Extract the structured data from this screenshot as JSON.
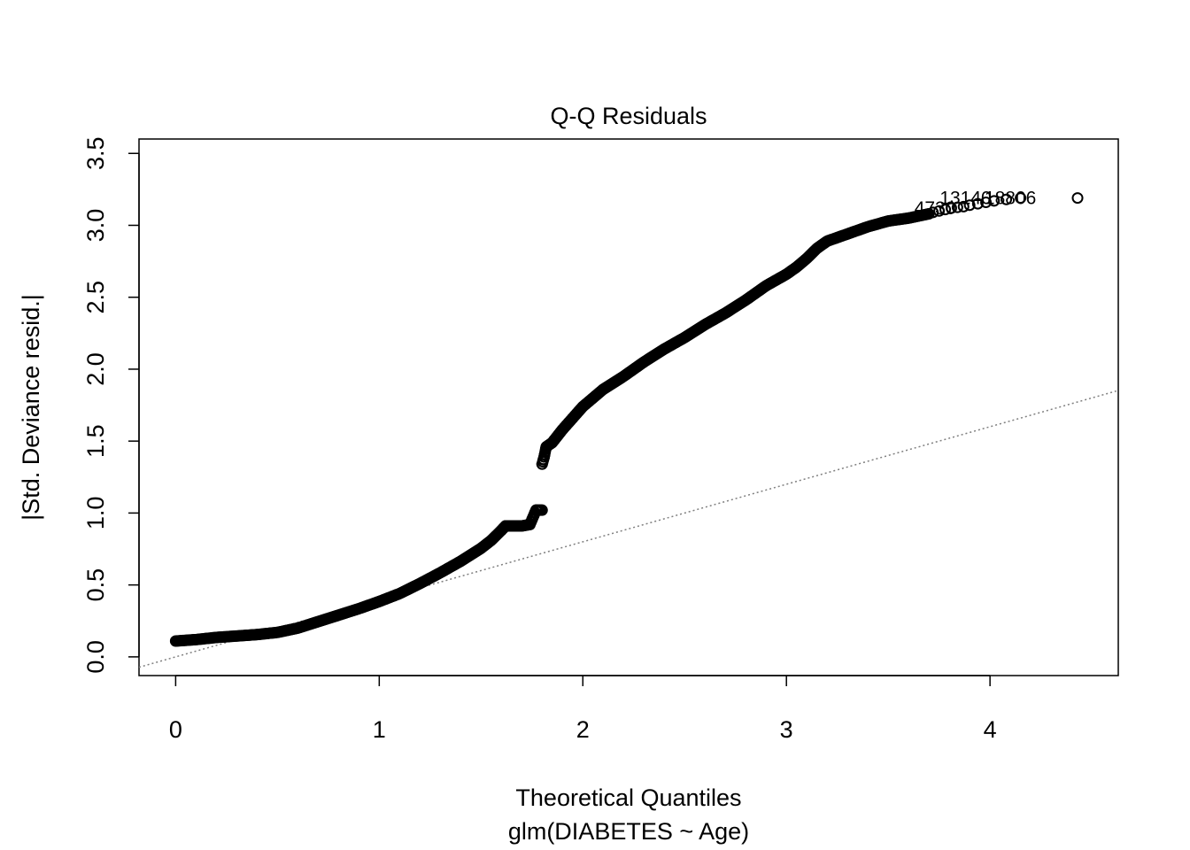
{
  "chart_data": {
    "type": "scatter",
    "title": "Q-Q Residuals",
    "xlabel": "Theoretical Quantiles",
    "subtitle": "glm(DIABETES ~ Age)",
    "ylabel": "|Std. Deviance resid.|",
    "xlim": [
      -0.18,
      4.63
    ],
    "ylim": [
      -0.13,
      3.6
    ],
    "x_ticks": [
      "0",
      "1",
      "2",
      "3",
      "4"
    ],
    "y_ticks": [
      "0.0",
      "0.5",
      "1.0",
      "1.5",
      "2.0",
      "2.5",
      "3.0",
      "3.5"
    ],
    "reference_line": {
      "style": "dotted",
      "color": "#7f7f7f",
      "intercept": 0.0,
      "slope": 0.4
    },
    "series": [
      {
        "curve_lower": [
          [
            0.0,
            0.11
          ],
          [
            0.1,
            0.12
          ],
          [
            0.2,
            0.135
          ],
          [
            0.3,
            0.145
          ],
          [
            0.4,
            0.155
          ],
          [
            0.5,
            0.17
          ],
          [
            0.6,
            0.2
          ],
          [
            0.7,
            0.245
          ],
          [
            0.8,
            0.29
          ],
          [
            0.9,
            0.335
          ],
          [
            1.0,
            0.385
          ],
          [
            1.1,
            0.44
          ],
          [
            1.2,
            0.51
          ],
          [
            1.3,
            0.585
          ],
          [
            1.4,
            0.665
          ],
          [
            1.5,
            0.755
          ],
          [
            1.55,
            0.81
          ],
          [
            1.6,
            0.88
          ],
          [
            1.62,
            0.91
          ],
          [
            1.7,
            0.91
          ],
          [
            1.74,
            0.92
          ],
          [
            1.77,
            1.02
          ],
          [
            1.8,
            1.02
          ]
        ],
        "curve_upper": [
          [
            1.8,
            1.34
          ],
          [
            1.81,
            1.39
          ],
          [
            1.82,
            1.46
          ],
          [
            1.85,
            1.49
          ],
          [
            1.9,
            1.58
          ],
          [
            1.95,
            1.66
          ],
          [
            2.0,
            1.74
          ],
          [
            2.1,
            1.86
          ],
          [
            2.2,
            1.95
          ],
          [
            2.3,
            2.05
          ],
          [
            2.4,
            2.14
          ],
          [
            2.5,
            2.22
          ],
          [
            2.6,
            2.31
          ],
          [
            2.7,
            2.39
          ],
          [
            2.8,
            2.48
          ],
          [
            2.9,
            2.58
          ],
          [
            3.0,
            2.66
          ],
          [
            3.05,
            2.71
          ],
          [
            3.1,
            2.77
          ],
          [
            3.15,
            2.84
          ],
          [
            3.2,
            2.89
          ],
          [
            3.3,
            2.94
          ],
          [
            3.4,
            2.99
          ],
          [
            3.5,
            3.03
          ],
          [
            3.6,
            3.05
          ],
          [
            3.7,
            3.08
          ]
        ],
        "tail_points": [
          [
            3.72,
            3.09
          ],
          [
            3.75,
            3.1
          ],
          [
            3.78,
            3.11
          ],
          [
            3.81,
            3.12
          ],
          [
            3.84,
            3.125
          ],
          [
            3.87,
            3.13
          ],
          [
            3.9,
            3.14
          ],
          [
            3.94,
            3.15
          ],
          [
            3.98,
            3.16
          ],
          [
            4.02,
            3.17
          ],
          [
            4.08,
            3.18
          ],
          [
            4.15,
            3.19
          ],
          [
            4.43,
            3.19
          ]
        ]
      }
    ],
    "point_labels": [
      {
        "text": "4730",
        "x": 3.73,
        "y": 3.12
      },
      {
        "text": "13140",
        "x": 3.88,
        "y": 3.19
      },
      {
        "text": "18806",
        "x": 4.1,
        "y": 3.19
      }
    ]
  }
}
